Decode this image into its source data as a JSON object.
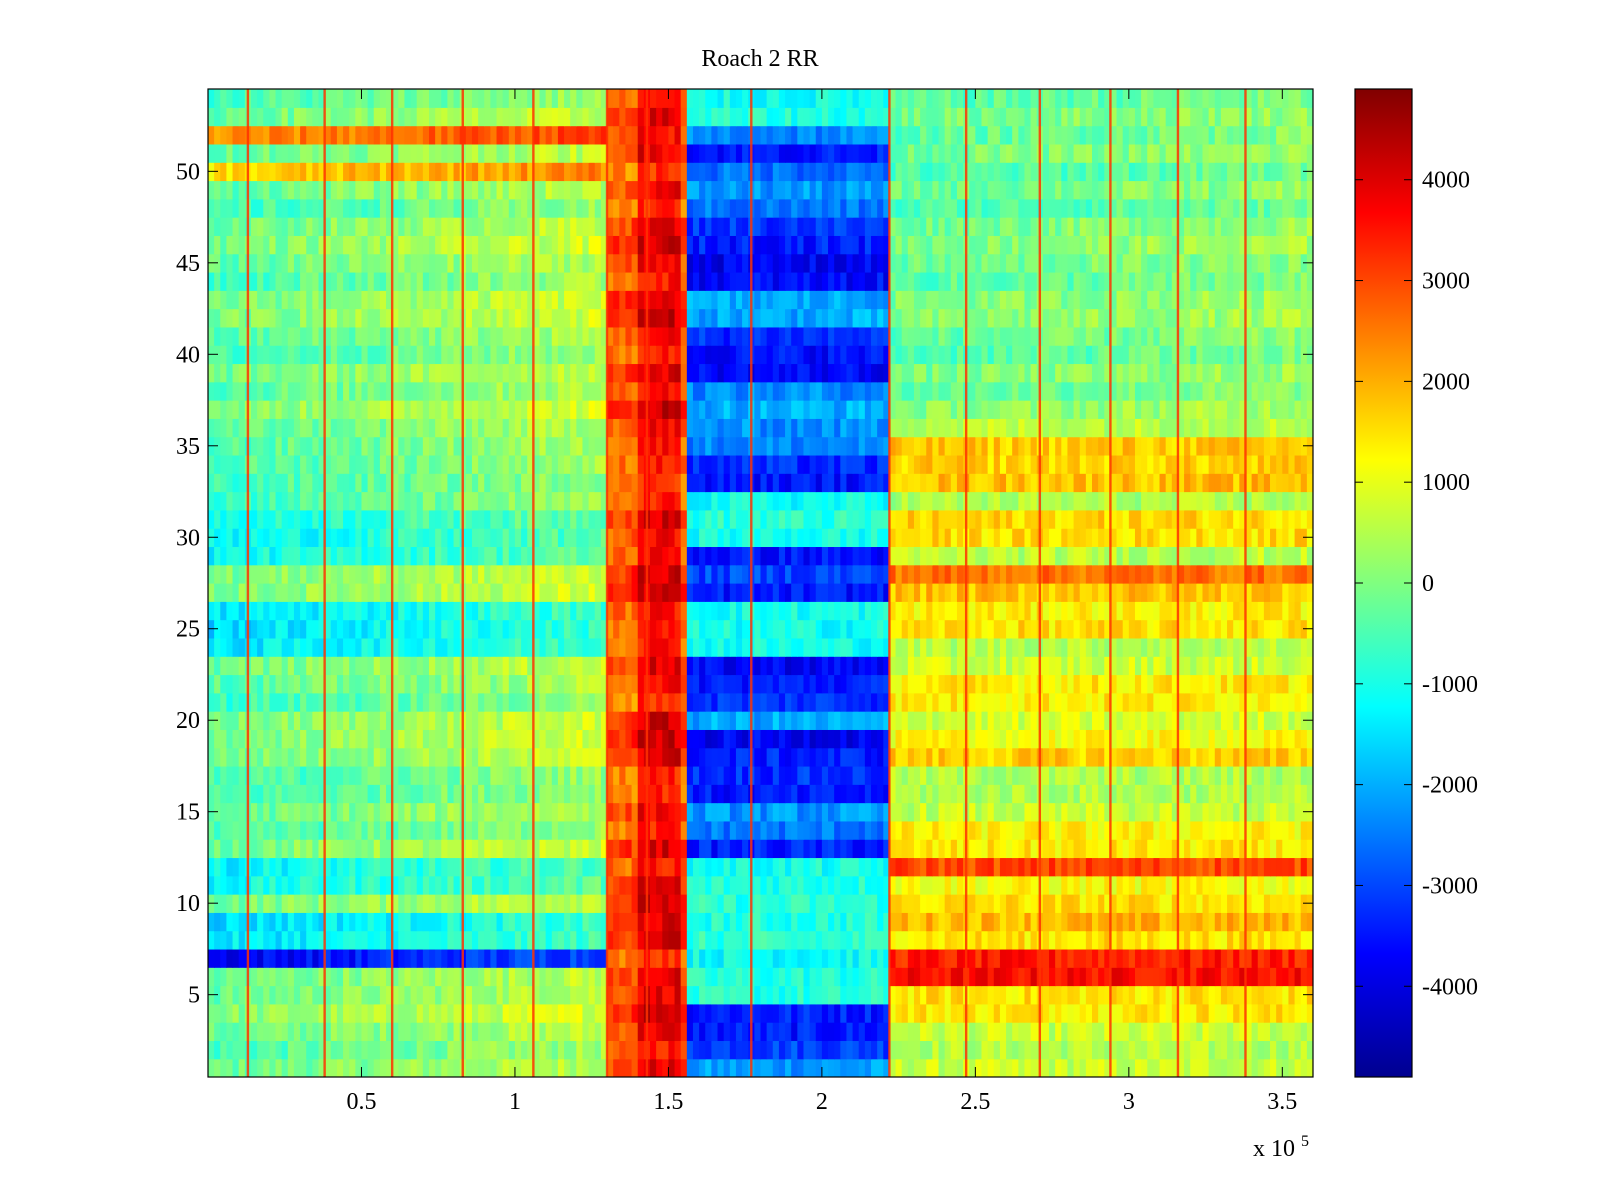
{
  "chart_data": {
    "type": "heatmap",
    "title": "Roach 2 RR",
    "xlabel": "",
    "ylabel": "",
    "x_exponent_label": {
      "base": "x 10",
      "exponent": "5"
    },
    "xlim": [
      0,
      3.6
    ],
    "ylim": [
      0.5,
      54.5
    ],
    "x_ticks": [
      0.5,
      1,
      1.5,
      2,
      2.5,
      3,
      3.5
    ],
    "x_tick_labels": [
      "0.5",
      "1",
      "1.5",
      "2",
      "2.5",
      "3",
      "3.5"
    ],
    "y_ticks": [
      5,
      10,
      15,
      20,
      25,
      30,
      35,
      40,
      45,
      50
    ],
    "y_tick_labels": [
      "5",
      "10",
      "15",
      "20",
      "25",
      "30",
      "35",
      "40",
      "45",
      "50"
    ],
    "colormap": "jet",
    "colorbar": {
      "range": [
        -4900,
        4900
      ],
      "ticks": [
        -4000,
        -3000,
        -2000,
        -1000,
        0,
        1000,
        2000,
        3000,
        4000
      ],
      "tick_labels": [
        "-4000",
        "-3000",
        "-2000",
        "-1000",
        "0",
        "1000",
        "2000",
        "3000",
        "4000"
      ]
    },
    "column_bands": [
      {
        "x_start": 0.0,
        "x_end": 1.3,
        "description": "background",
        "approx_value": -400
      },
      {
        "x_start": 1.3,
        "x_end": 1.56,
        "description": "warm ridge",
        "approx_value": 2800
      },
      {
        "x_start": 1.56,
        "x_end": 2.22,
        "description": "cold trough",
        "approx_value": -2300
      },
      {
        "x_start": 2.22,
        "x_end": 3.6,
        "description": "recovery",
        "approx_value": 600
      }
    ],
    "row_features": [
      {
        "row": 7,
        "segment": "left",
        "approx_value": -3800
      },
      {
        "row": 6,
        "segment": "right",
        "approx_value": 3600
      },
      {
        "row": 7,
        "segment": "right",
        "approx_value": 3400
      },
      {
        "row": 12,
        "segment": "right",
        "approx_value": 3000
      },
      {
        "row": 28,
        "segment": "right",
        "approx_value": 2600
      },
      {
        "row": 52,
        "segment": "left",
        "approx_value": 2200
      },
      {
        "row": 50,
        "segment": "left",
        "approx_value": 1500
      }
    ],
    "vertical_stripes_x": [
      0.13,
      0.38,
      0.6,
      0.83,
      1.06,
      1.3,
      1.43,
      1.77,
      2.22,
      2.47,
      2.71,
      2.94,
      3.16,
      3.38
    ]
  }
}
